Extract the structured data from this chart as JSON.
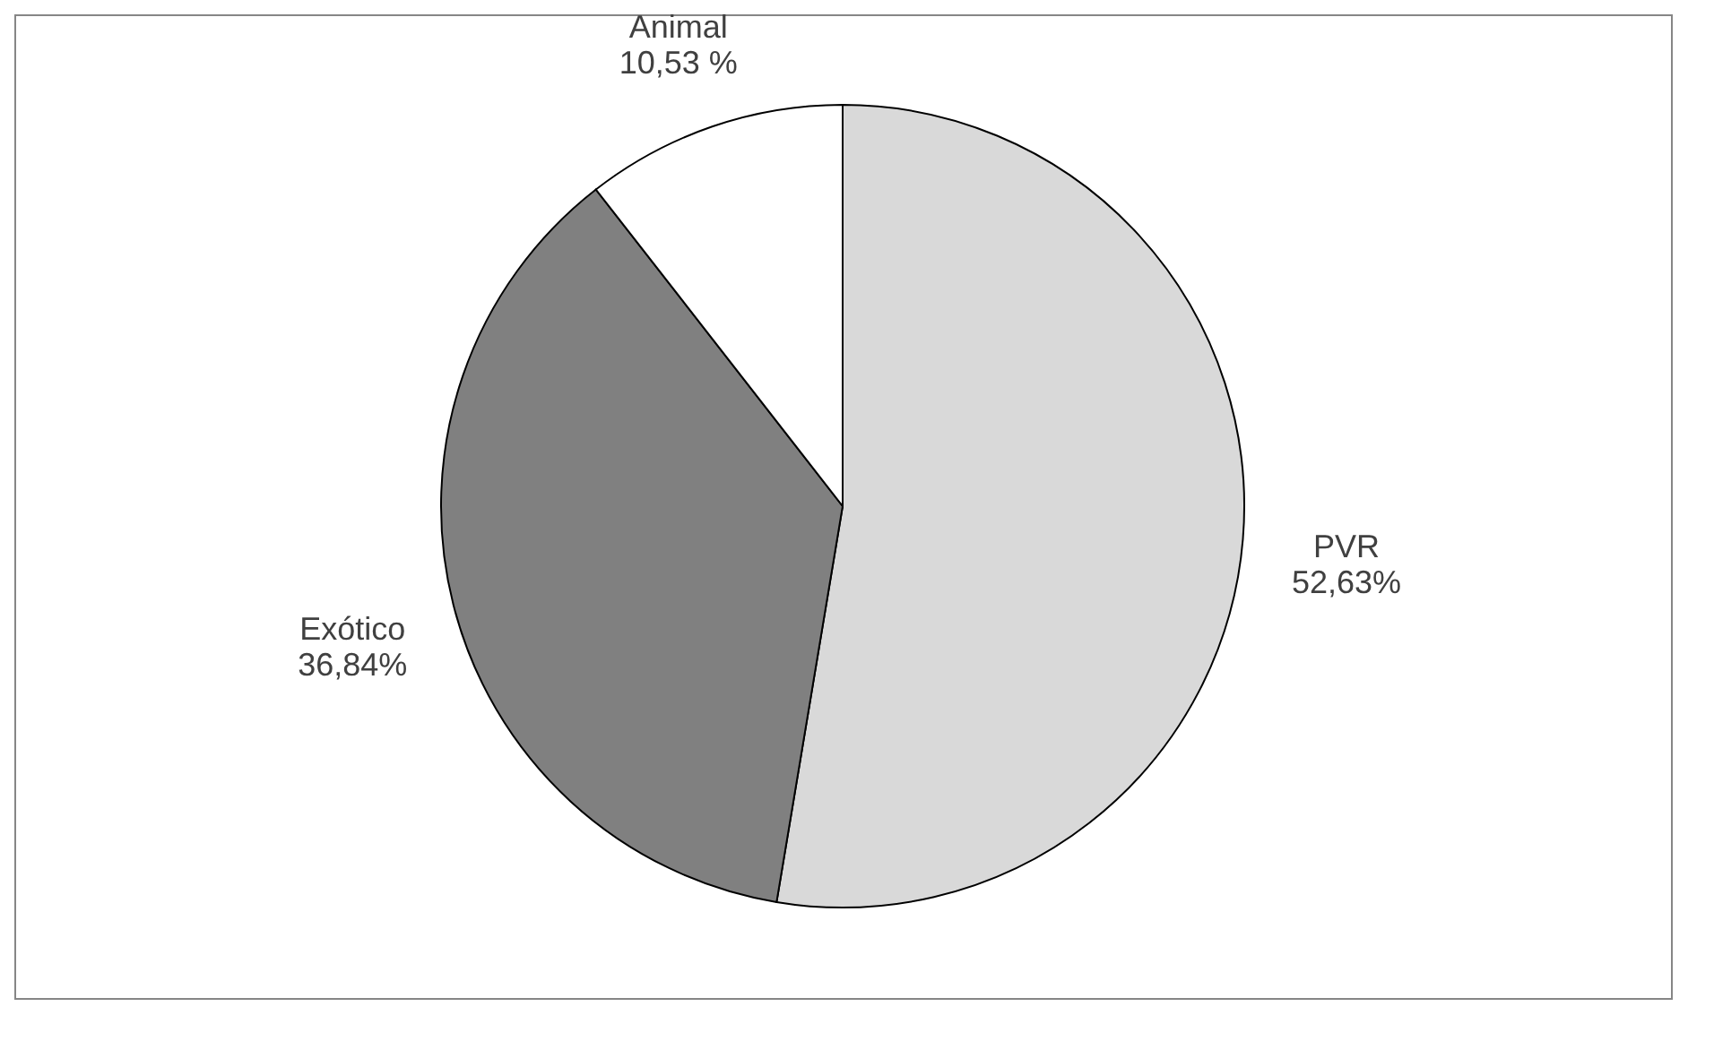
{
  "chart_data": {
    "type": "pie",
    "categories": [
      "PVR",
      "Exótico",
      "Animal"
    ],
    "values": [
      52.63,
      36.84,
      10.53
    ],
    "colors": [
      "#d9d9d9",
      "#808080",
      "#ffffff"
    ],
    "value_labels": [
      "52,63%",
      "36,84%",
      "10,53 %"
    ],
    "legend": false
  }
}
